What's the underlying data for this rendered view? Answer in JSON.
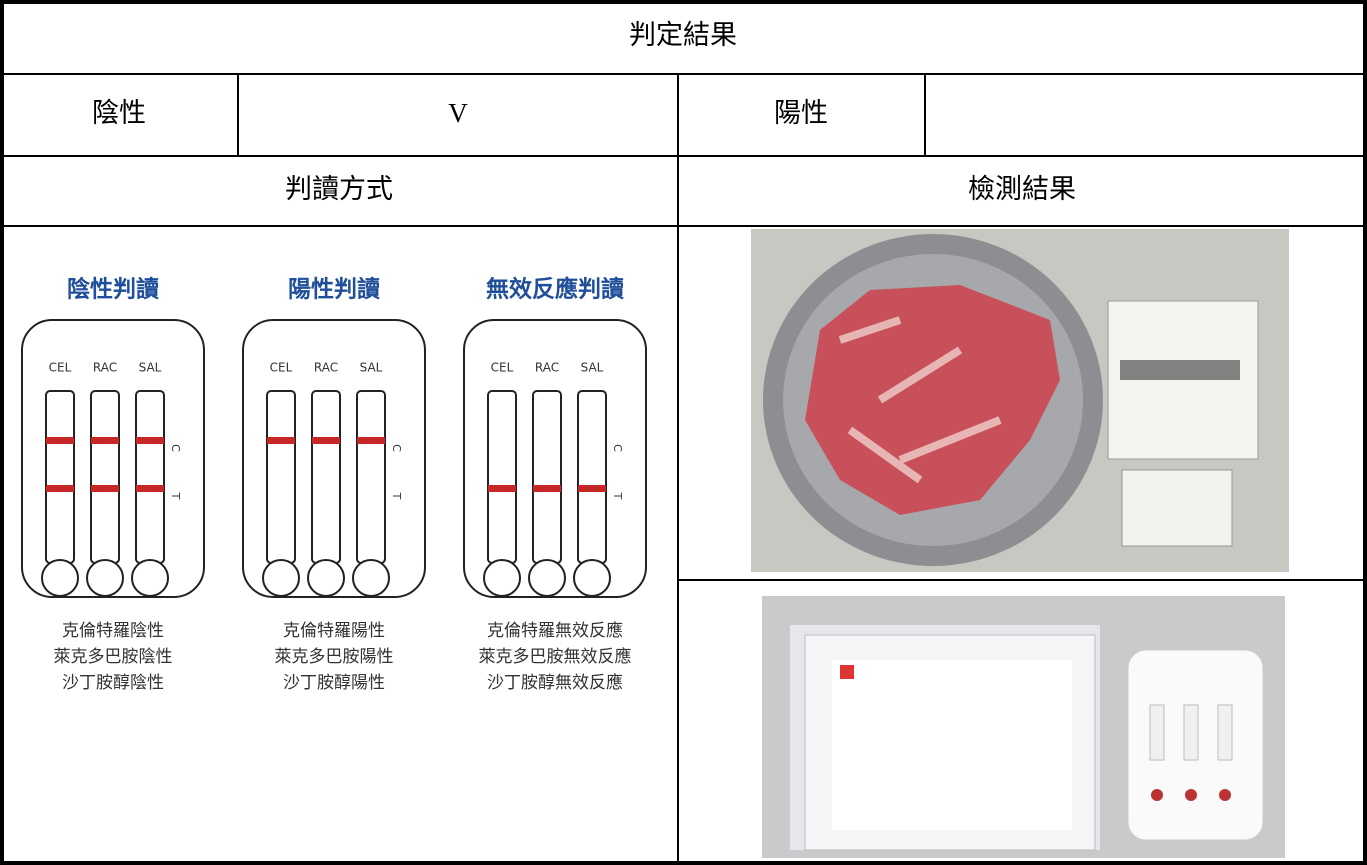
{
  "table": {
    "title": "判定結果",
    "result": {
      "negative": {
        "label": "陰性",
        "mark": "V"
      },
      "positive": {
        "label": "陽性"
      }
    },
    "headers": [
      "判讀方式",
      "檢測結果"
    ],
    "guide": {
      "panels": [
        {
          "title": "陰性判讀",
          "strips": [
            "CEL",
            "RAC",
            "SAL"
          ],
          "markers": [
            "C",
            "T"
          ],
          "results": [
            "克倫特羅陰性",
            "萊克多巴胺陰性",
            "沙丁胺醇陰性"
          ]
        },
        {
          "title": "陽性判讀",
          "strips": [
            "CEL",
            "RAC",
            "SAL"
          ],
          "markers": [
            "C",
            "T"
          ],
          "results": [
            "克倫特羅陽性",
            "萊克多巴胺陽性",
            "沙丁胺醇陽性"
          ]
        },
        {
          "title": "無效反應判讀",
          "strips": [
            "CEL",
            "RAC",
            "SAL"
          ],
          "markers": [
            "C",
            "T"
          ],
          "results": [
            "克倫特羅無效反應",
            "萊克多巴胺無效反應",
            "沙丁胺醇無效反應"
          ]
        }
      ]
    }
  }
}
